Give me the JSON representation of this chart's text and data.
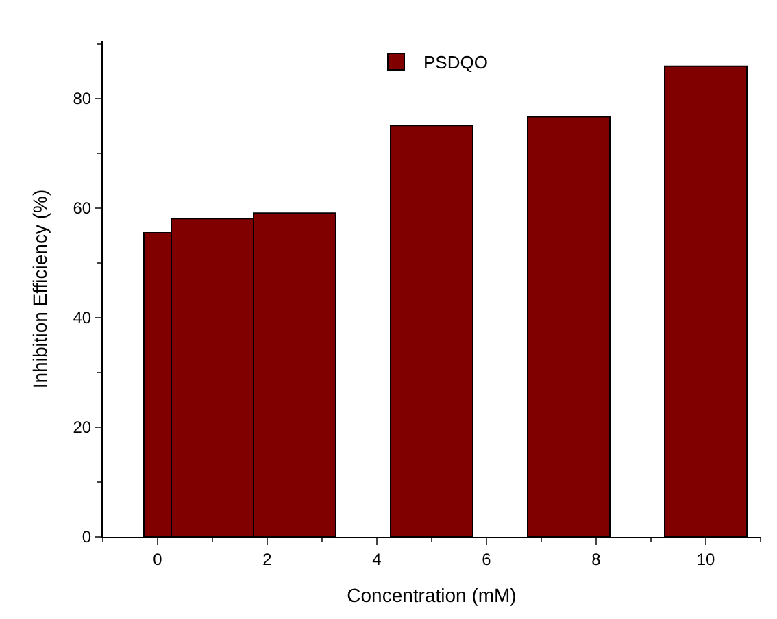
{
  "chart_data": {
    "type": "bar",
    "xlabel": "Concentration (mM)",
    "ylabel": "Inhibition Efficiency (%)",
    "x": [
      0.5,
      1,
      2.5,
      5,
      7.5,
      10
    ],
    "series": [
      {
        "name": "PSDQO",
        "color": "#800000",
        "values": [
          55.5,
          58.1,
          59.1,
          75.1,
          76.7,
          85.9
        ]
      }
    ],
    "xlim": [
      -1,
      11
    ],
    "xticks": [
      0,
      2,
      4,
      6,
      8,
      10
    ],
    "ylim": [
      0,
      90.5
    ],
    "yticks": [
      0,
      20,
      40,
      60,
      80
    ],
    "legend": "top"
  }
}
